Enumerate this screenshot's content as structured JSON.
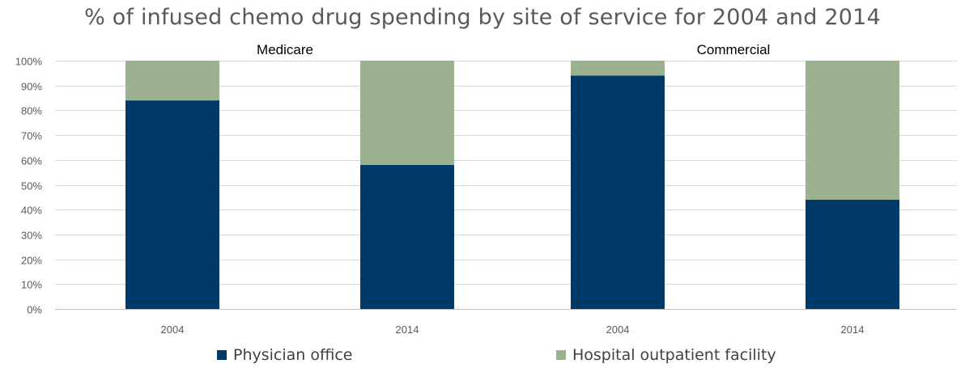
{
  "title": "% of infused chemo drug spending by site of service for 2004 and 2014",
  "colors": {
    "physician_office": "#003a68",
    "hospital_outpatient": "#9bb18f",
    "grid": "#d9d9d9",
    "axis": "#bfbfbf"
  },
  "legend": {
    "physician_office": "Physician office",
    "hospital_outpatient": "Hospital outpatient facility"
  },
  "chart_data": {
    "type": "bar",
    "stacked": true,
    "percent_stacked": true,
    "title": "% of infused chemo drug spending by site of service for 2004 and 2014",
    "ylim": [
      0,
      100
    ],
    "yticks": [
      "0%",
      "10%",
      "20%",
      "30%",
      "40%",
      "50%",
      "60%",
      "70%",
      "80%",
      "90%",
      "100%"
    ],
    "grid": true,
    "legend_position": "bottom",
    "panels": [
      {
        "label": "Medicare",
        "categories": [
          "2004",
          "2014"
        ],
        "series": [
          {
            "name": "Physician office",
            "values": [
              84,
              58
            ]
          },
          {
            "name": "Hospital outpatient facility",
            "values": [
              16,
              42
            ]
          }
        ]
      },
      {
        "label": "Commercial",
        "categories": [
          "2004",
          "2014"
        ],
        "series": [
          {
            "name": "Physician office",
            "values": [
              94,
              44
            ]
          },
          {
            "name": "Hospital outpatient facility",
            "values": [
              6,
              56
            ]
          }
        ]
      }
    ]
  }
}
